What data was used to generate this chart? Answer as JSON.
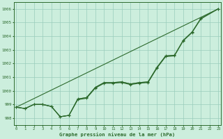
{
  "x": [
    0,
    1,
    2,
    3,
    4,
    5,
    6,
    7,
    8,
    9,
    10,
    11,
    12,
    13,
    14,
    15,
    16,
    17,
    18,
    19,
    20,
    21,
    22,
    23
  ],
  "line_main": [
    998.8,
    998.7,
    999.0,
    999.0,
    998.85,
    998.1,
    998.2,
    999.4,
    999.5,
    1000.25,
    1000.6,
    1000.6,
    1000.65,
    1000.5,
    1000.6,
    1000.65,
    1001.7,
    1002.55,
    1002.6,
    1003.7,
    1004.3,
    1005.3,
    null,
    1006.0
  ],
  "line_upper": [
    998.8,
    null,
    null,
    null,
    null,
    null,
    null,
    null,
    null,
    null,
    null,
    null,
    null,
    null,
    null,
    null,
    null,
    null,
    null,
    null,
    null,
    null,
    null,
    1006.0
  ],
  "line_mid": [
    998.8,
    998.7,
    999.0,
    999.0,
    998.85,
    998.1,
    998.2,
    999.4,
    999.5,
    1000.25,
    1000.6,
    1000.6,
    1000.65,
    1000.5,
    1000.6,
    1000.65,
    1001.7,
    1002.55,
    1002.6,
    null,
    null,
    null,
    null,
    null
  ],
  "line_low": [
    998.8,
    998.7,
    999.0,
    999.0,
    998.85,
    998.1,
    998.2,
    999.35,
    999.45,
    1000.2,
    1000.55,
    1000.55,
    1000.6,
    1000.45,
    1000.55,
    1000.6,
    1001.65,
    1002.5,
    1002.55,
    1003.65,
    1004.25,
    1005.25,
    null,
    1006.0
  ],
  "line_color": "#2d6a2d",
  "bg_color": "#cceedd",
  "grid_color": "#99ccbb",
  "title": "Graphe pression niveau de la mer (hPa)",
  "ylim": [
    997.5,
    1006.5
  ],
  "yticks": [
    998,
    999,
    1000,
    1001,
    1002,
    1003,
    1004,
    1005,
    1006
  ],
  "xticks": [
    0,
    1,
    2,
    3,
    4,
    5,
    6,
    7,
    8,
    9,
    10,
    11,
    12,
    13,
    14,
    15,
    16,
    17,
    18,
    19,
    20,
    21,
    22,
    23
  ]
}
